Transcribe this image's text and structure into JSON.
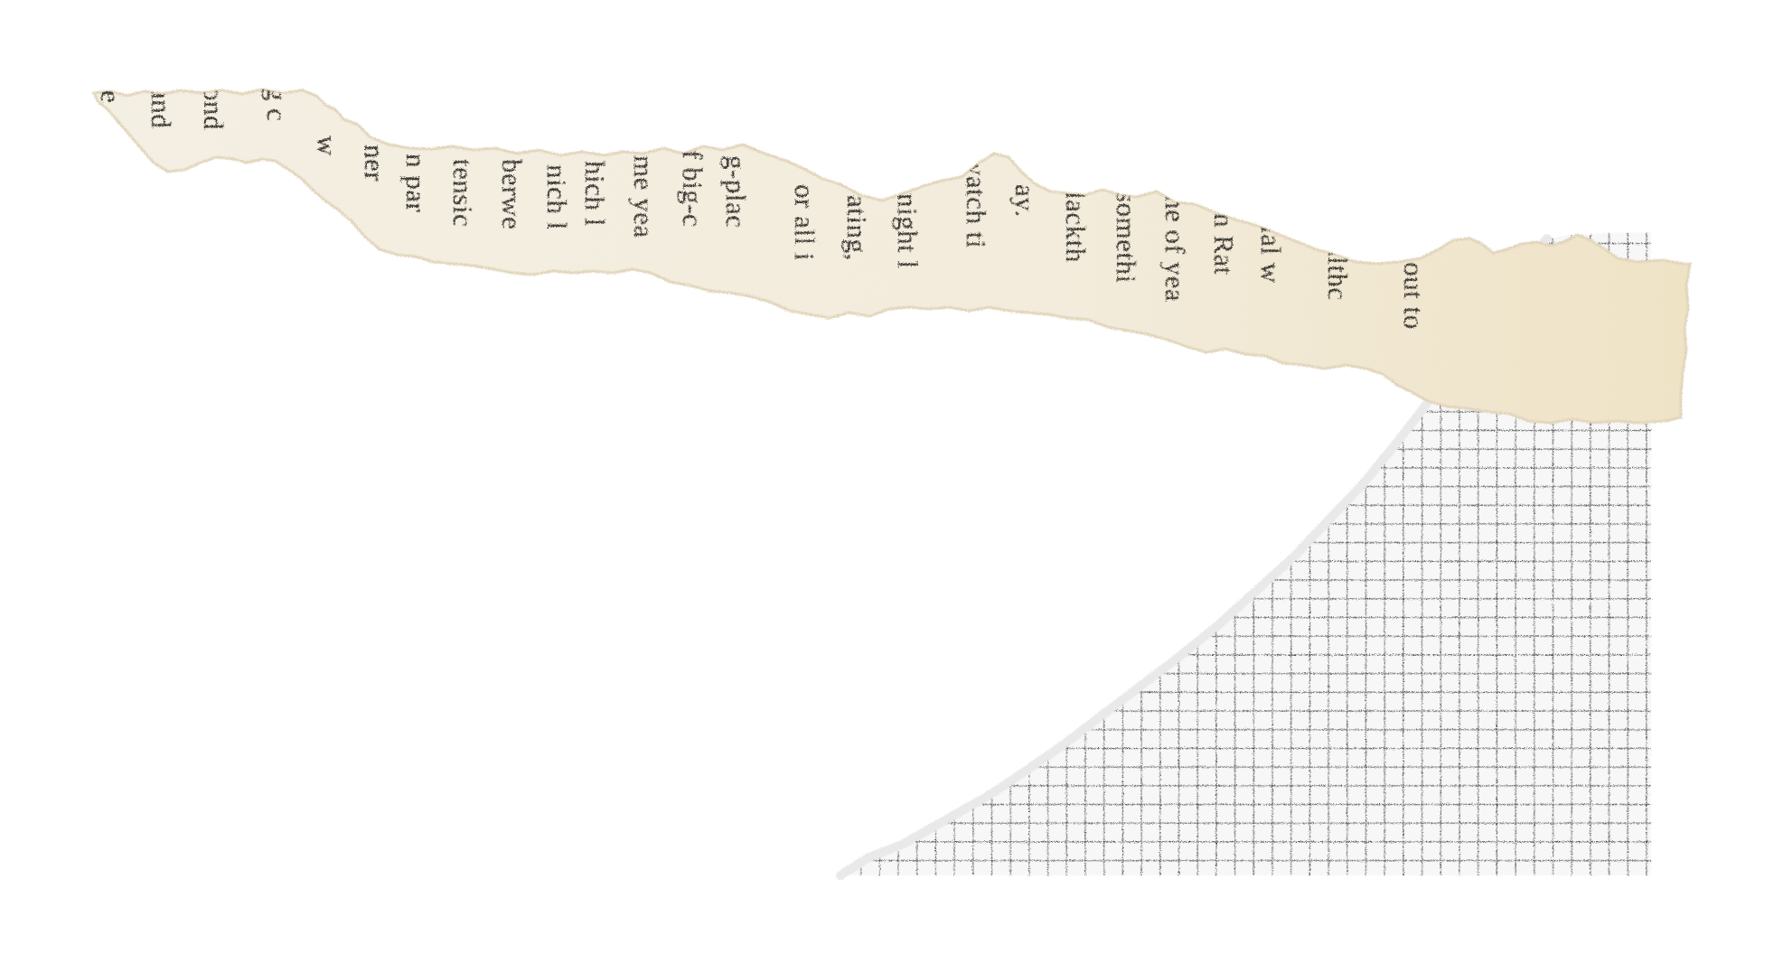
{
  "scene": {
    "background_color": "#ffffff",
    "paper_color": "#f3ede0",
    "paper_edge_color": "#e6dcc6",
    "grid_paper_color": "#f7f7f7",
    "grid_line_color": "#3a3a3a",
    "ink_color": "#3c3a36"
  },
  "torn_newspaper": {
    "text_fragments": [
      "e",
      "and",
      "ond",
      "g c",
      "w",
      "ner",
      "n par",
      "tensic",
      "berwe",
      "nich l",
      "hich l",
      "me yea",
      "f big-c",
      "g-plac",
      "or all i",
      "ating,",
      "night l",
      "watch ti",
      "ay.",
      "lackth",
      "somethi",
      "ne of yea",
      "n Rat",
      "ial w",
      "althc",
      "d out to"
    ]
  }
}
